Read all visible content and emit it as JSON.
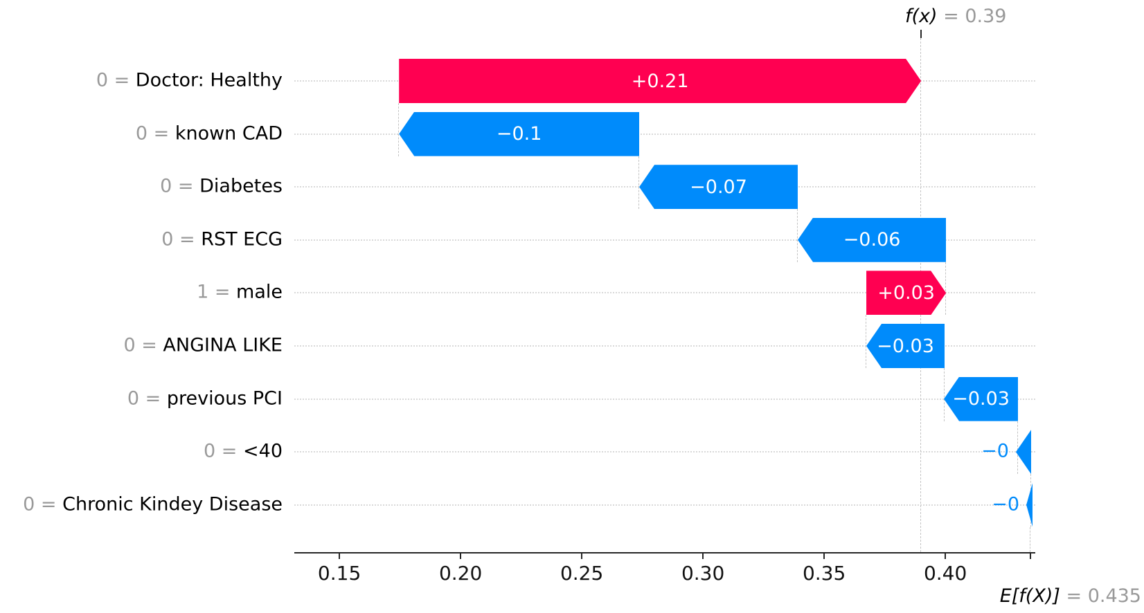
{
  "annotations": {
    "fx": {
      "symbol": "f(x)",
      "value_text": " = 0.39"
    },
    "ef": {
      "symbol": "E[f(X)]",
      "value_text": " = 0.435"
    }
  },
  "chart_data": {
    "type": "bar",
    "variant": "shap-waterfall",
    "orientation": "horizontal",
    "fx": 0.39,
    "expected_value": 0.435,
    "xlim": [
      0.1314,
      0.4371
    ],
    "x_ticks": [
      0.15,
      0.2,
      0.25,
      0.3,
      0.35,
      0.4
    ],
    "x_tick_labels": [
      "0.15",
      "0.20",
      "0.25",
      "0.30",
      "0.35",
      "0.40"
    ],
    "value_separator": " = ",
    "grid": "horizontal-dotted",
    "colors": {
      "positive": "#ff0051",
      "negative": "#008bfb",
      "feature_value_text": "#999999",
      "feature_name_text": "#000000",
      "bar_value_text": "#ffffff",
      "annotation_gray": "#999999",
      "axis": "#262626",
      "gridline": "#d9d9d9",
      "connector": "#c3c3c3"
    },
    "rows": [
      {
        "value": "0",
        "feature": "Doctor: Healthy",
        "label": "+0.21",
        "shap": 0.21,
        "start": 0.1746,
        "end": 0.39,
        "direction": "positive",
        "label_placement": "inside"
      },
      {
        "value": "0",
        "feature": "known CAD",
        "label": "−0.1",
        "shap": -0.1,
        "start": 0.2737,
        "end": 0.1746,
        "direction": "negative",
        "label_placement": "inside"
      },
      {
        "value": "0",
        "feature": "Diabetes",
        "label": "−0.07",
        "shap": -0.07,
        "start": 0.3391,
        "end": 0.2737,
        "direction": "negative",
        "label_placement": "inside"
      },
      {
        "value": "0",
        "feature": "RST ECG",
        "label": "−0.06",
        "shap": -0.06,
        "start": 0.4003,
        "end": 0.3391,
        "direction": "negative",
        "label_placement": "inside"
      },
      {
        "value": "1",
        "feature": "male",
        "label": "+0.03",
        "shap": 0.03,
        "start": 0.3674,
        "end": 0.4003,
        "direction": "positive",
        "label_placement": "inside"
      },
      {
        "value": "0",
        "feature": "ANGINA LIKE",
        "label": "−0.03",
        "shap": -0.03,
        "start": 0.3997,
        "end": 0.3674,
        "direction": "negative",
        "label_placement": "inside"
      },
      {
        "value": "0",
        "feature": "previous PCI",
        "label": "−0.03",
        "shap": -0.03,
        "start": 0.43,
        "end": 0.3994,
        "direction": "negative",
        "label_placement": "inside"
      },
      {
        "value": "0",
        "feature": "<40",
        "label": "−0",
        "shap": -0.0,
        "start": 0.4354,
        "end": 0.4291,
        "direction": "negative",
        "label_placement": "outside"
      },
      {
        "value": "0",
        "feature": "Chronic Kindey Disease",
        "label": "−0",
        "shap": -0.0,
        "start": 0.436,
        "end": 0.4334,
        "direction": "negative",
        "label_placement": "outside"
      }
    ]
  }
}
